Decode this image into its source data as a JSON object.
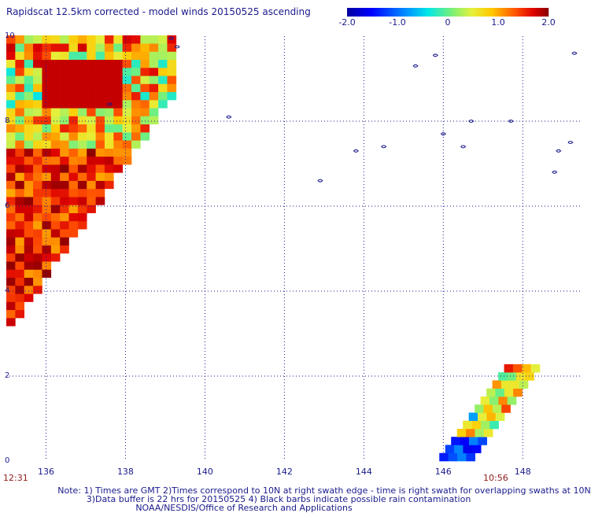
{
  "title": "Rapidscat 12.5km corrected - model winds 20150525 ascending",
  "colorbar": {
    "ticks": [
      "-2.0",
      "-1.0",
      "0",
      "1.0",
      "2.0"
    ],
    "range": [
      -2.0,
      2.0
    ]
  },
  "map": {
    "lon_range": [
      135,
      149.5
    ],
    "lat_range": [
      0,
      10
    ],
    "x_tick_labels": [
      "136",
      "138",
      "140",
      "142",
      "144",
      "146",
      "148"
    ],
    "y_tick_labels": [
      "10",
      "8",
      "6",
      "4",
      "2",
      "0"
    ],
    "grid": "dotted",
    "start_time": "12:31",
    "end_time": "10:56"
  },
  "notes": {
    "line1": "Note: 1) Times are GMT 2)Times correspond to 10N at right swath edge - time is right swath for overlapping swaths at 10N",
    "line2": "3)Data buffer is 22 hrs for 20150525 4) Black barbs indicate possible rain contamination",
    "line3": "NOAA/NESDIS/Office of Research and Applications"
  },
  "colors": {
    "coastline": "#1a1a8c",
    "grid": "#1a1a8c",
    "time_label": "#8b1a1a"
  }
}
